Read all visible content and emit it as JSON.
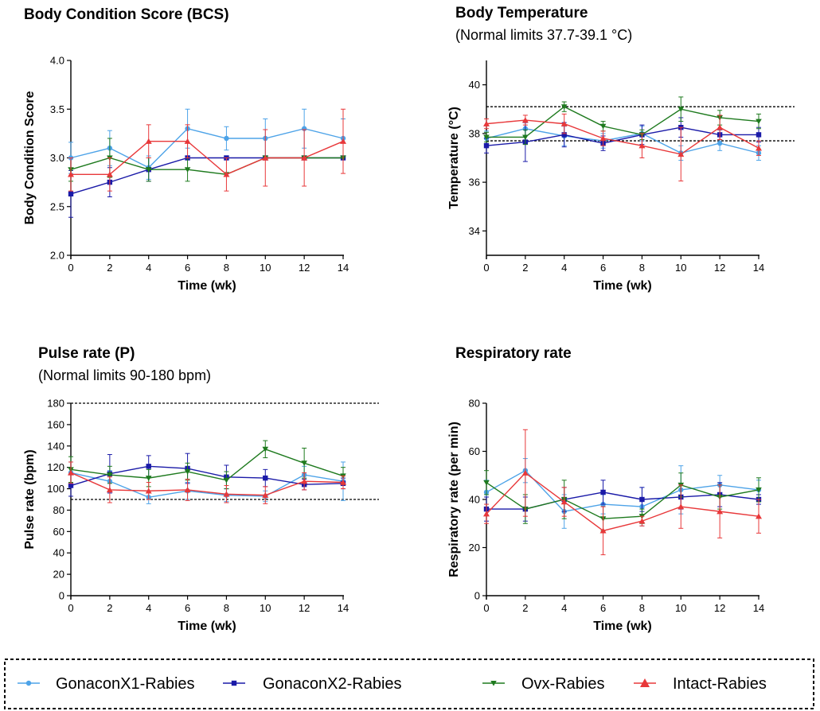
{
  "x": [
    0,
    2,
    4,
    6,
    8,
    10,
    12,
    14
  ],
  "legend": [
    {
      "name": "GonaconX1-Rabies",
      "color": "#4da3e8",
      "marker": "circle"
    },
    {
      "name": "GonaconX2-Rabies",
      "color": "#1a1aa8",
      "marker": "square"
    },
    {
      "name": "Ovx-Rabies",
      "color": "#1e7a1e",
      "marker": "tri-down"
    },
    {
      "name": "Intact-Rabies",
      "color": "#e8383a",
      "marker": "tri-up"
    }
  ],
  "chart_data": [
    {
      "type": "line",
      "title": "Body Condition Score (BCS)",
      "subtitle": "",
      "xlabel": "Time (wk)",
      "ylabel": "Body Condition Score",
      "ylim": [
        2.0,
        4.0
      ],
      "yticks": [
        2.0,
        2.5,
        3.0,
        3.5,
        4.0
      ],
      "ytick_labels": [
        "2.0",
        "2.5",
        "3.0",
        "3.5",
        "4.0"
      ],
      "xticks": [
        0,
        2,
        4,
        6,
        8,
        10,
        12,
        14
      ],
      "ref_lines": [],
      "series": [
        {
          "name": "GonaconX1-Rabies",
          "values": [
            3.0,
            3.1,
            2.9,
            3.3,
            3.2,
            3.2,
            3.3,
            3.2
          ],
          "err": [
            0.16,
            0.18,
            0.12,
            0.2,
            0.12,
            0.2,
            0.2,
            0.2
          ]
        },
        {
          "name": "GonaconX2-Rabies",
          "values": [
            2.63,
            2.75,
            2.88,
            3.0,
            3.0,
            3.0,
            3.0,
            3.0
          ],
          "err": [
            0.24,
            0.15,
            0.12,
            0.0,
            0.0,
            0.0,
            0.0,
            0.0
          ]
        },
        {
          "name": "Ovx-Rabies",
          "values": [
            2.88,
            3.0,
            2.88,
            2.88,
            2.83,
            3.0,
            3.0,
            3.0
          ],
          "err": [
            0.12,
            0.2,
            0.12,
            0.12,
            0.0,
            0.0,
            0.0,
            0.0
          ]
        },
        {
          "name": "Intact-Rabies",
          "values": [
            2.83,
            2.83,
            3.17,
            3.17,
            2.83,
            3.0,
            3.0,
            3.17
          ],
          "err": [
            0.17,
            0.17,
            0.17,
            0.17,
            0.17,
            0.29,
            0.29,
            0.33
          ]
        }
      ]
    },
    {
      "type": "line",
      "title": "Body Temperature",
      "subtitle": "(Normal limits 37.7-39.1 °C)",
      "xlabel": "Time (wk)",
      "ylabel": "Temperature (°C)",
      "ylim": [
        33,
        41
      ],
      "yticks": [
        34,
        36,
        38,
        40
      ],
      "ytick_labels": [
        "34",
        "36",
        "38",
        "40"
      ],
      "xticks": [
        0,
        2,
        4,
        6,
        8,
        10,
        12,
        14
      ],
      "ref_lines": [
        37.7,
        39.1
      ],
      "series": [
        {
          "name": "GonaconX1-Rabies",
          "values": [
            37.8,
            38.2,
            37.9,
            37.7,
            38.0,
            37.2,
            37.6,
            37.2
          ],
          "err": [
            0.3,
            0.3,
            0.4,
            0.3,
            0.3,
            0.3,
            0.3,
            0.3
          ]
        },
        {
          "name": "GonaconX2-Rabies",
          "values": [
            37.5,
            37.65,
            37.95,
            37.6,
            37.95,
            38.25,
            37.95,
            37.95
          ],
          "err": [
            0.3,
            0.8,
            0.5,
            0.3,
            0.4,
            0.4,
            0.2,
            0.3
          ]
        },
        {
          "name": "Ovx-Rabies",
          "values": [
            37.85,
            37.85,
            39.1,
            38.3,
            37.95,
            39.0,
            38.65,
            38.5
          ],
          "err": [
            0.2,
            0.3,
            0.2,
            0.2,
            0.2,
            0.5,
            0.3,
            0.3
          ]
        },
        {
          "name": "Intact-Rabies",
          "values": [
            38.4,
            38.55,
            38.4,
            37.8,
            37.5,
            37.15,
            38.25,
            37.4
          ],
          "err": [
            0.2,
            0.2,
            0.4,
            0.3,
            0.5,
            1.1,
            0.5,
            0.3
          ]
        }
      ]
    },
    {
      "type": "line",
      "title": "Pulse rate (P)",
      "subtitle": "(Normal limits 90-180 bpm)",
      "xlabel": "Time (wk)",
      "ylabel": "Pulse rate (bpm)",
      "ylim": [
        0,
        180
      ],
      "yticks": [
        0,
        20,
        40,
        60,
        80,
        100,
        120,
        140,
        160,
        180
      ],
      "ytick_labels": [
        "0",
        "20",
        "40",
        "60",
        "80",
        "100",
        "120",
        "140",
        "160",
        "180"
      ],
      "xticks": [
        0,
        2,
        4,
        6,
        8,
        10,
        12,
        14
      ],
      "ref_lines": [
        90,
        180
      ],
      "series": [
        {
          "name": "GonaconX1-Rabies",
          "values": [
            115,
            107,
            92,
            98,
            94,
            93,
            113,
            107
          ],
          "err": [
            10,
            10,
            6,
            8,
            6,
            5,
            8,
            18
          ]
        },
        {
          "name": "GonaconX2-Rabies",
          "values": [
            103,
            114,
            121,
            119,
            111,
            110,
            104,
            105
          ],
          "err": [
            10,
            18,
            10,
            14,
            11,
            8,
            5,
            5
          ]
        },
        {
          "name": "Ovx-Rabies",
          "values": [
            118,
            113,
            110,
            116,
            108,
            137,
            124,
            112
          ],
          "err": [
            12,
            8,
            8,
            8,
            8,
            8,
            14,
            8
          ]
        },
        {
          "name": "Intact-Rabies",
          "values": [
            115,
            99,
            98,
            99,
            95,
            94,
            107,
            106
          ],
          "err": [
            10,
            12,
            8,
            10,
            8,
            8,
            8,
            6
          ]
        }
      ]
    },
    {
      "type": "line",
      "title": "Respiratory rate",
      "subtitle": "",
      "xlabel": "Time (wk)",
      "ylabel": "Respiratory rate (per min)",
      "ylim": [
        0,
        80
      ],
      "yticks": [
        0,
        20,
        40,
        60,
        80
      ],
      "ytick_labels": [
        "0",
        "20",
        "40",
        "60",
        "80"
      ],
      "xticks": [
        0,
        2,
        4,
        6,
        8,
        10,
        12,
        14
      ],
      "ref_lines": [],
      "series": [
        {
          "name": "GonaconX1-Rabies",
          "values": [
            43,
            52,
            35,
            38,
            37,
            44,
            46,
            44
          ],
          "err": [
            5,
            5,
            7,
            4,
            8,
            10,
            4,
            4
          ]
        },
        {
          "name": "GonaconX2-Rabies",
          "values": [
            36,
            36,
            40,
            43,
            40,
            41,
            42,
            40
          ],
          "err": [
            5,
            5,
            5,
            5,
            5,
            5,
            5,
            2
          ]
        },
        {
          "name": "Ovx-Rabies",
          "values": [
            47,
            36,
            40,
            32,
            33,
            46,
            41,
            44
          ],
          "err": [
            5,
            6,
            8,
            5,
            3,
            5,
            5,
            5
          ]
        },
        {
          "name": "Intact-Rabies",
          "values": [
            34,
            51,
            39,
            27,
            31,
            37,
            35,
            33
          ],
          "err": [
            4,
            18,
            6,
            10,
            2,
            9,
            11,
            7
          ]
        }
      ]
    }
  ]
}
